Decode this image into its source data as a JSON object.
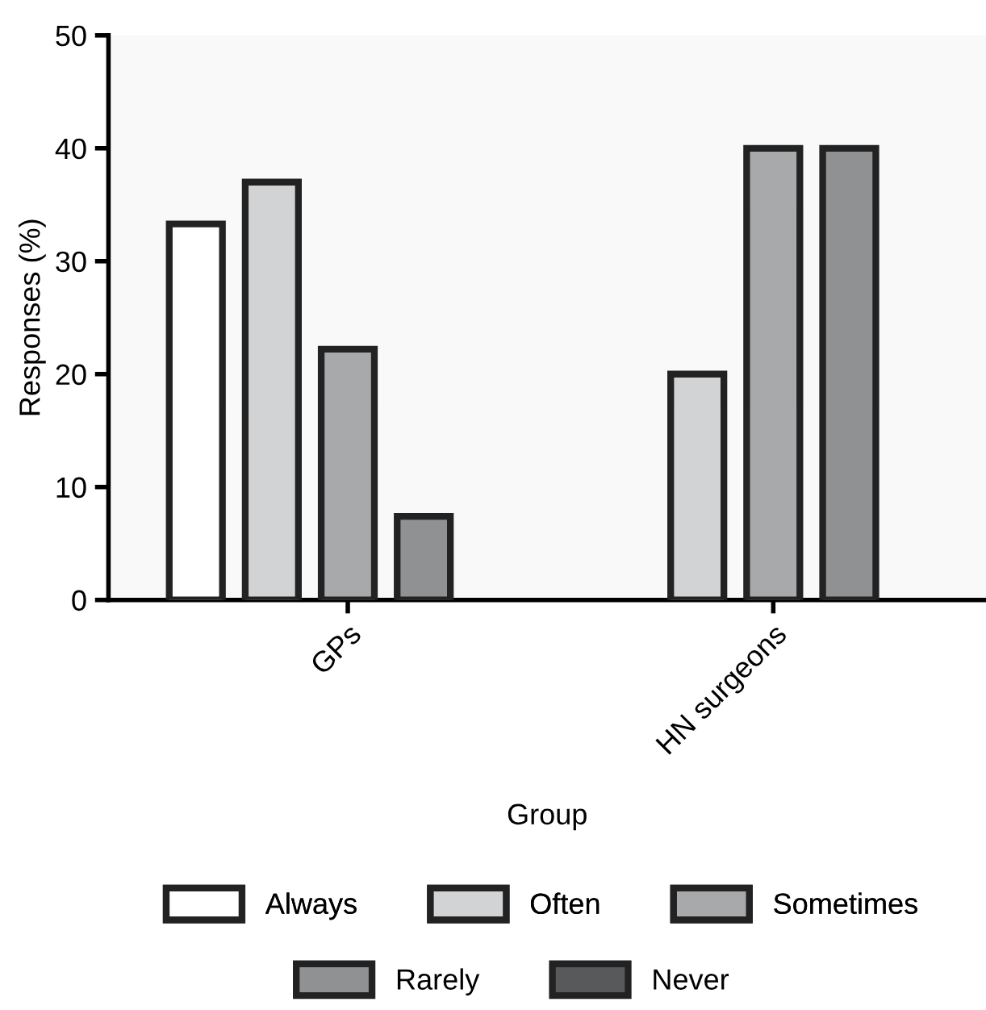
{
  "chart_data": {
    "type": "bar",
    "xlabel": "Group",
    "ylabel": "Responses (%)",
    "categories": [
      "GPs",
      "HN surgeons"
    ],
    "series": [
      {
        "name": "Always",
        "color": "#ffffff",
        "values": [
          33.3,
          null
        ]
      },
      {
        "name": "Often",
        "color": "#d2d3d5",
        "values": [
          37,
          20
        ]
      },
      {
        "name": "Sometimes",
        "color": "#a8a9ab",
        "values": [
          22.2,
          40
        ]
      },
      {
        "name": "Rarely",
        "color": "#909193",
        "values": [
          7.4,
          40
        ]
      },
      {
        "name": "Never",
        "color": "#58595b",
        "values": [
          null,
          null
        ]
      }
    ],
    "ylim": [
      0,
      50
    ],
    "yticks": [
      0,
      10,
      20,
      30,
      40,
      50
    ],
    "grid": false,
    "legend": "bottom"
  }
}
